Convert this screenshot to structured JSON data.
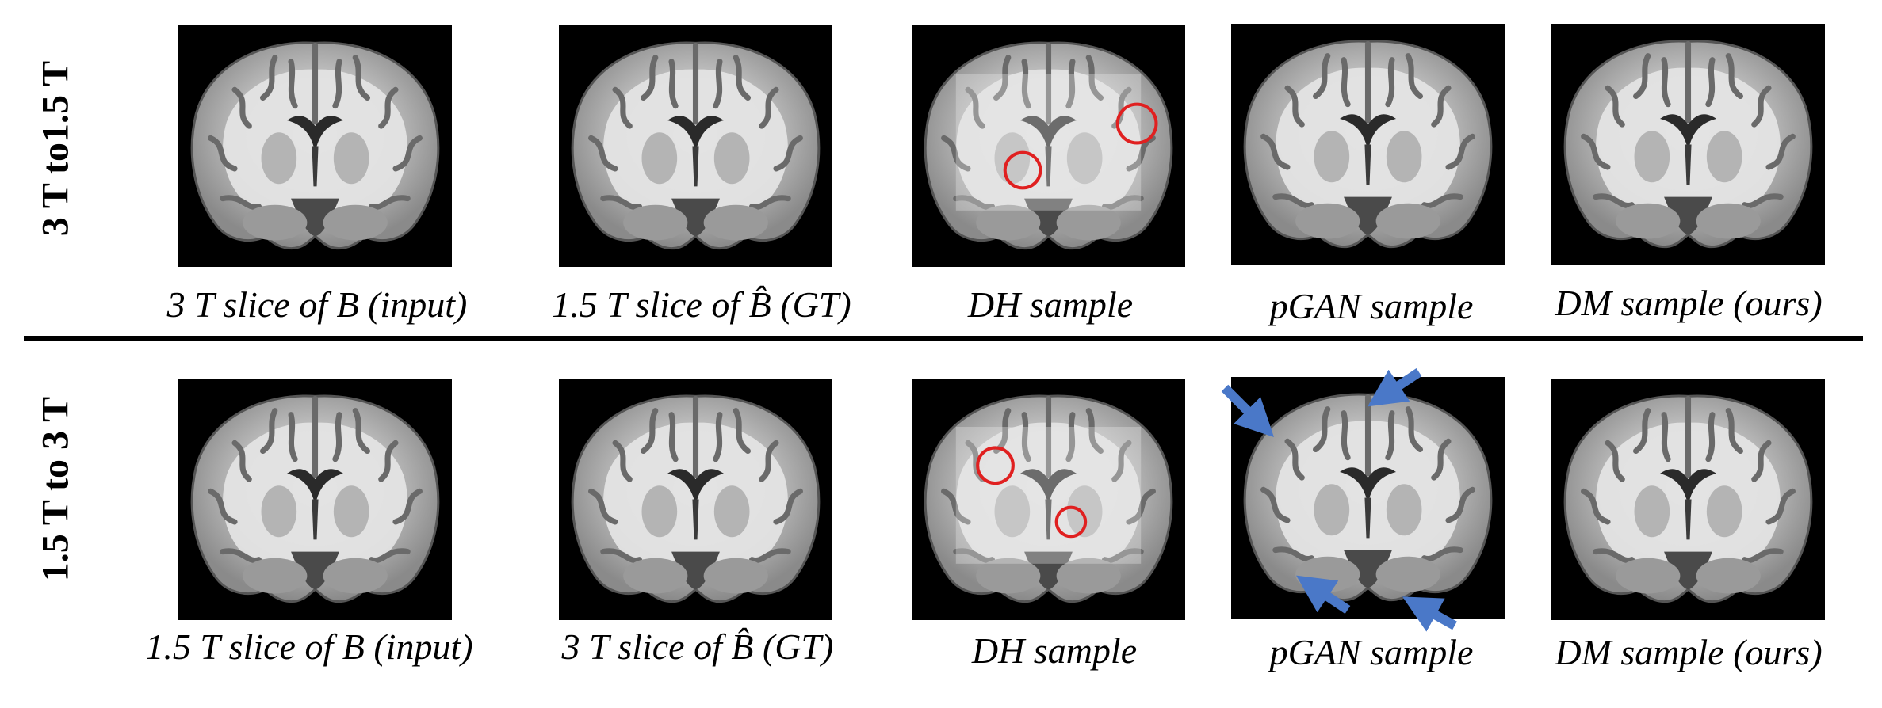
{
  "rows": [
    {
      "label": "3 T to1.5 T",
      "panels": [
        {
          "caption_pre": "3 T  slice of ",
          "caption_sym": "B",
          "caption_post": " (input)"
        },
        {
          "caption_pre": "1.5 T slice of ",
          "caption_sym": "B̂",
          "caption_post": " (GT)"
        },
        {
          "caption_pre": "DH sample",
          "caption_sym": "",
          "caption_post": ""
        },
        {
          "caption_pre": "pGAN sample",
          "caption_sym": "",
          "caption_post": ""
        },
        {
          "caption_pre": "DM sample (ours)",
          "caption_sym": "",
          "caption_post": ""
        }
      ]
    },
    {
      "label": "1.5 T to 3 T",
      "panels": [
        {
          "caption_pre": "1.5 T slice of ",
          "caption_sym": "B",
          "caption_post": " (input)"
        },
        {
          "caption_pre": "3 T slice of ",
          "caption_sym": "B̂",
          "caption_post": " (GT)"
        },
        {
          "caption_pre": "DH sample",
          "caption_sym": "",
          "caption_post": ""
        },
        {
          "caption_pre": "pGAN sample",
          "caption_sym": "",
          "caption_post": ""
        },
        {
          "caption_pre": "DM sample (ours)",
          "caption_sym": "",
          "caption_post": ""
        }
      ]
    }
  ],
  "colors": {
    "circle": "#e02020",
    "arrow": "#4a78c8",
    "background": "#000000"
  }
}
